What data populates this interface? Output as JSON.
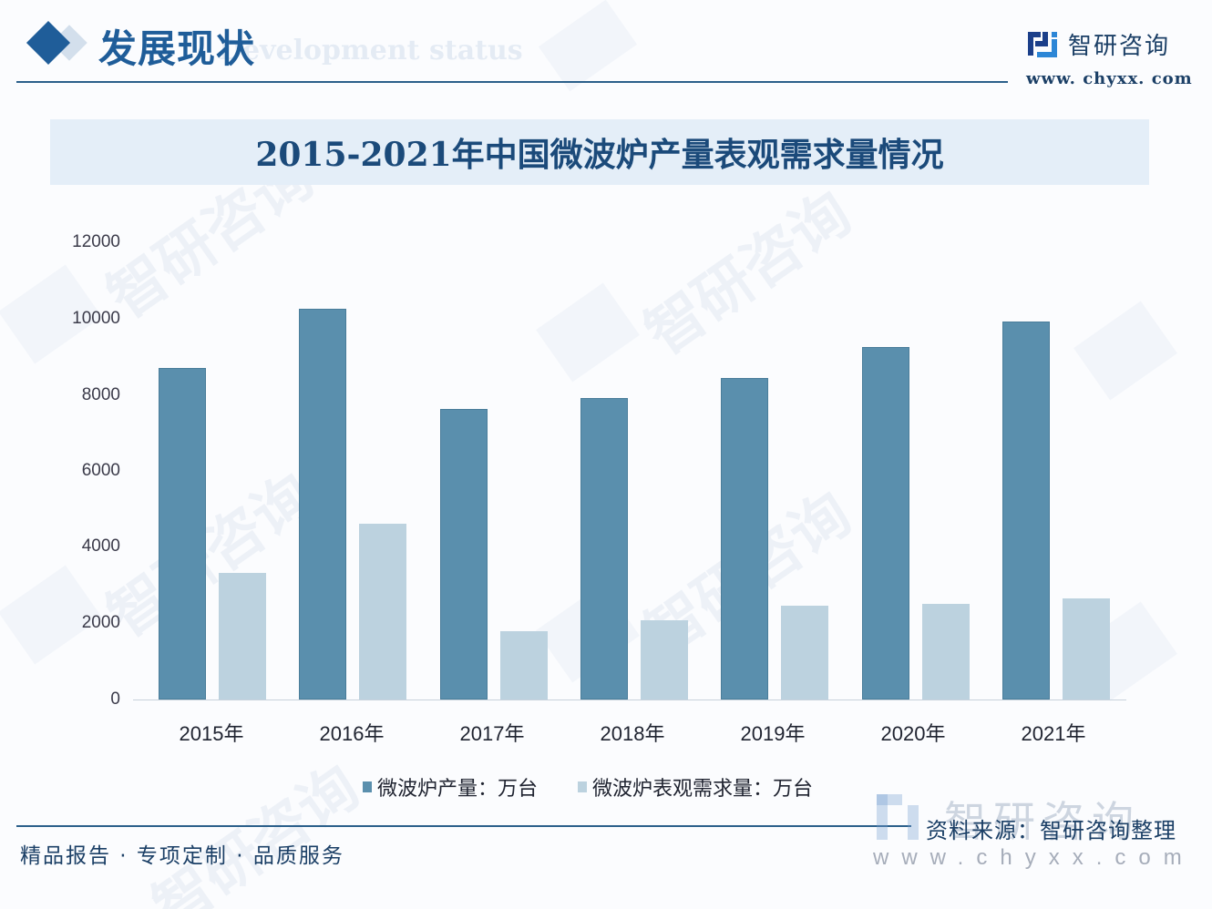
{
  "header": {
    "section_title": "发展现状",
    "section_subtitle": "Development status",
    "brand_name": "智研咨询",
    "brand_url": "www. chyxx. com"
  },
  "title": "2015-2021年中国微波炉产量表观需求量情况",
  "colors": {
    "production": "#5a8fad",
    "demand": "#bcd2df",
    "accent": "#1f5d99",
    "title_band": "#e4eef8"
  },
  "axis": {
    "y_ticks": [
      "12000",
      "10000",
      "8000",
      "6000",
      "4000",
      "2000",
      "0"
    ]
  },
  "x_labels": [
    "2015年",
    "2016年",
    "2017年",
    "2018年",
    "2019年",
    "2020年",
    "2021年"
  ],
  "legend": {
    "production": "微波炉产量：万台",
    "demand": "微波炉表观需求量：万台"
  },
  "footer": {
    "slogan": "精品报告 · 专项定制 · 品质服务",
    "source_watermark": "智研咨询",
    "source": "资料来源：智研咨询整理",
    "source_url": "www.chyxx.com"
  },
  "chart_data": {
    "type": "bar",
    "title": "2015-2021年中国微波炉产量表观需求量情况",
    "categories": [
      "2015年",
      "2016年",
      "2017年",
      "2018年",
      "2019年",
      "2020年",
      "2021年"
    ],
    "series": [
      {
        "name": "微波炉产量：万台",
        "color": "#5a8fad",
        "values": [
          8690,
          10260,
          7630,
          7920,
          8450,
          9260,
          9930
        ]
      },
      {
        "name": "微波炉表观需求量：万台",
        "color": "#bcd2df",
        "values": [
          3320,
          4620,
          1790,
          2080,
          2460,
          2510,
          2660
        ]
      }
    ],
    "xlabel": "",
    "ylabel": "",
    "ylim": [
      0,
      12000
    ],
    "y_ticks": [
      0,
      2000,
      4000,
      6000,
      8000,
      10000,
      12000
    ],
    "grid": false,
    "legend_position": "bottom"
  }
}
